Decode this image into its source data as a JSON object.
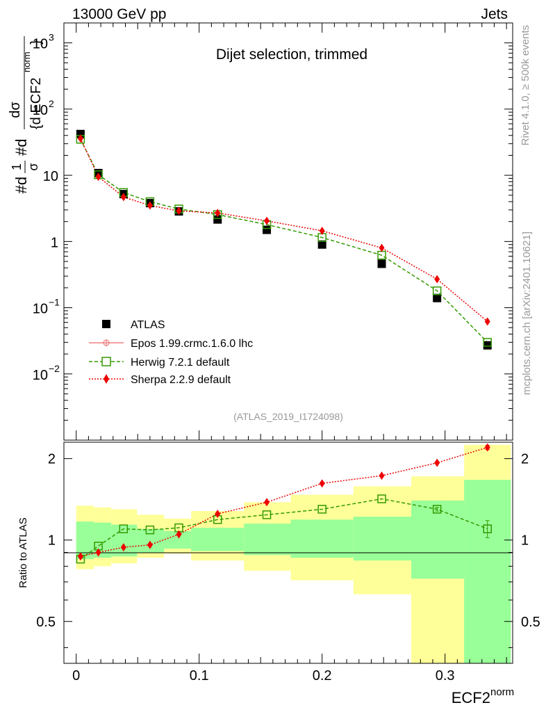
{
  "header": {
    "energy_label": "13000 GeV pp",
    "process_label": "Jets"
  },
  "side_labels": {
    "rivet": "Rivet 4.1.0, ≥ 500k events",
    "mcplots": "mcplots.cern.ch [arXiv:2401.10621]"
  },
  "analysis_id": "(ATLAS_2019_I1724098)",
  "colors": {
    "data": "#000000",
    "epos": "#f08080",
    "herwig": "#339900",
    "sherpa": "#ee0000",
    "band_outer": "#ffff99",
    "band_inner": "#99ff99"
  },
  "chart_data": [
    {
      "type": "scatter",
      "title": "Dijet selection, trimmed",
      "xlabel": "ECF2",
      "xlabel_sup": "norm",
      "ylabel": "#d 1/σ #d dσ/{d ECF2^norm}",
      "ylabel_parts": {
        "prefix": "#d",
        "frac_num": "1",
        "frac_den": "σ",
        "mid": "#d",
        "dsig_num": "dσ",
        "dsig_den": "{d ECF2",
        "dsig_sup": "norm",
        "dsig_close": "}"
      },
      "yscale": "log",
      "xlim": [
        -0.01,
        0.355
      ],
      "ylim": [
        0.001,
        2000
      ],
      "y_ticks": [
        {
          "v": 1000,
          "base": "10",
          "exp": "3"
        },
        {
          "v": 100,
          "base": "10",
          "exp": "2"
        },
        {
          "v": 10,
          "base": "10",
          "exp": ""
        },
        {
          "v": 1,
          "base": "1",
          "exp": ""
        },
        {
          "v": 0.1,
          "base": "10",
          "exp": "−1"
        },
        {
          "v": 0.01,
          "base": "10",
          "exp": "−2"
        }
      ],
      "x": [
        0.0035,
        0.018,
        0.0385,
        0.06,
        0.0835,
        0.115,
        0.155,
        0.2,
        0.2485,
        0.2935,
        0.3345
      ],
      "series": [
        {
          "name": "ATLAS",
          "key": "data",
          "values": [
            42,
            10.8,
            5.2,
            3.8,
            2.85,
            2.15,
            1.5,
            0.9,
            0.46,
            0.14,
            0.027
          ]
        },
        {
          "name": "Epos 1.99.crmc.1.6.0 lhc",
          "key": "epos",
          "values": []
        },
        {
          "name": "Herwig 7.2.1 default",
          "key": "herwig",
          "values": [
            35,
            10.2,
            5.5,
            4.0,
            3.1,
            2.55,
            1.8,
            1.15,
            0.62,
            0.18,
            0.03
          ]
        },
        {
          "name": "Sherpa 2.2.9 default",
          "key": "sherpa",
          "values": [
            36,
            9.5,
            4.7,
            3.5,
            2.9,
            2.7,
            2.05,
            1.45,
            0.8,
            0.27,
            0.062
          ]
        }
      ],
      "legend_position": "bottom-left"
    },
    {
      "type": "scatter",
      "ylabel": "Ratio to ATLAS",
      "xlabel": "ECF2",
      "xlim": [
        -0.01,
        0.355
      ],
      "ylim": [
        0.35,
        2.3
      ],
      "y_ticks": [
        {
          "v": 2,
          "label": "2"
        },
        {
          "v": 1,
          "label": "1"
        },
        {
          "v": 0.5,
          "label": "0.5"
        }
      ],
      "x_ticks": [
        {
          "v": 0,
          "label": "0"
        },
        {
          "v": 0.1,
          "label": "0.1"
        },
        {
          "v": 0.2,
          "label": "0.2"
        },
        {
          "v": 0.3,
          "label": "0.3"
        }
      ],
      "bin_edges": [
        0,
        0.0145,
        0.0285,
        0.0495,
        0.0715,
        0.0935,
        0.1365,
        0.1745,
        0.2255,
        0.2725,
        0.3155,
        0.3535
      ],
      "band_outer": [
        [
          0.78,
          1.34
        ],
        [
          0.8,
          1.32
        ],
        [
          0.82,
          1.3
        ],
        [
          0.86,
          1.24
        ],
        [
          0.89,
          1.2
        ],
        [
          0.84,
          1.28
        ],
        [
          0.77,
          1.38
        ],
        [
          0.71,
          1.47
        ],
        [
          0.63,
          1.58
        ],
        [
          0.33,
          1.72
        ],
        [
          0.33,
          2.25
        ]
      ],
      "band_inner": [
        [
          0.85,
          1.17
        ],
        [
          0.86,
          1.16
        ],
        [
          0.87,
          1.14
        ],
        [
          0.9,
          1.1
        ],
        [
          0.93,
          1.08
        ],
        [
          0.91,
          1.11
        ],
        [
          0.88,
          1.15
        ],
        [
          0.86,
          1.19
        ],
        [
          0.84,
          1.22
        ],
        [
          0.72,
          1.4
        ],
        [
          0.33,
          1.67
        ]
      ],
      "series": [
        {
          "name": "Herwig 7.2.1 default",
          "key": "herwig",
          "values": [
            0.85,
            0.95,
            1.1,
            1.09,
            1.11,
            1.19,
            1.24,
            1.3,
            1.42,
            1.3,
            1.1
          ],
          "errors": [
            0,
            0,
            0,
            0,
            0,
            0,
            0,
            0,
            0,
            0.02,
            0.08
          ]
        },
        {
          "name": "Sherpa 2.2.9 default",
          "key": "sherpa",
          "values": [
            0.87,
            0.9,
            0.94,
            0.96,
            1.05,
            1.25,
            1.38,
            1.62,
            1.73,
            1.93,
            2.2
          ],
          "errors": [
            0,
            0,
            0,
            0,
            0,
            0,
            0,
            0,
            0,
            0,
            0.04
          ]
        }
      ]
    }
  ]
}
